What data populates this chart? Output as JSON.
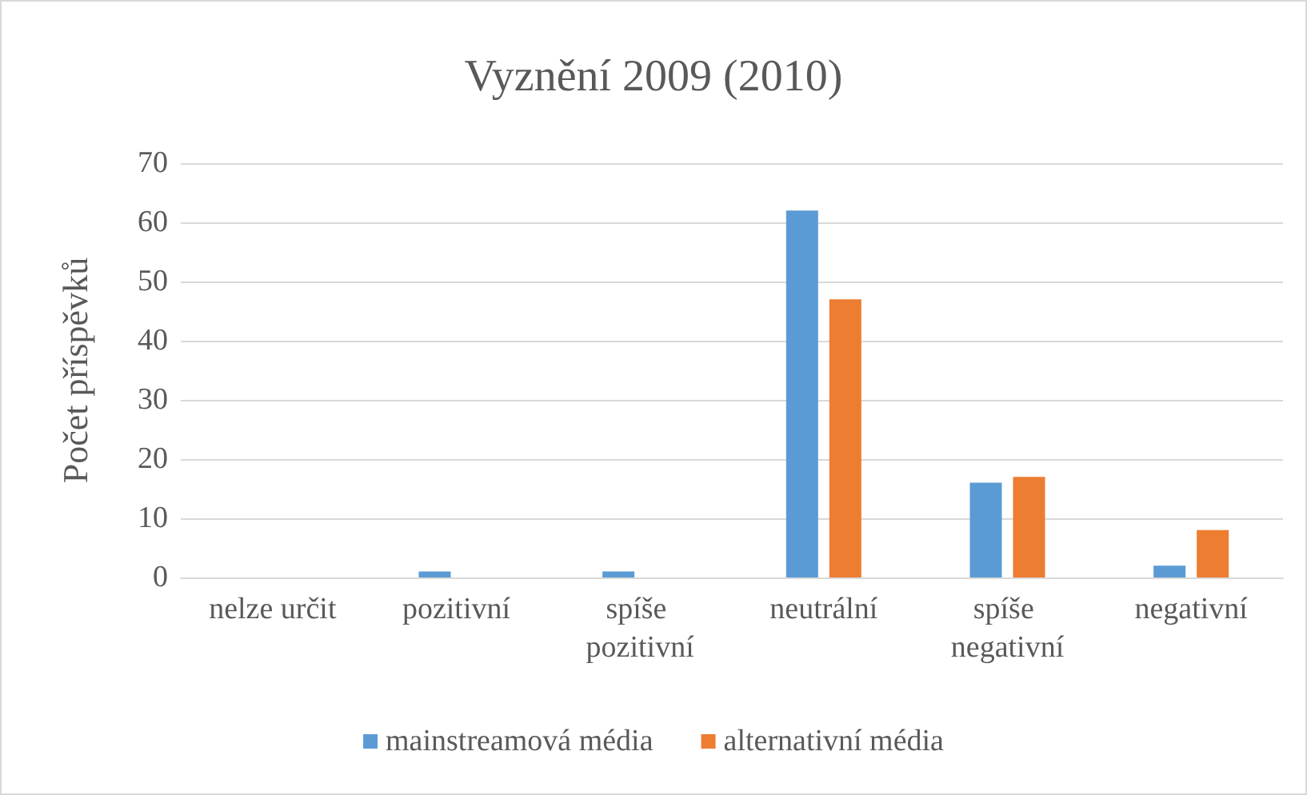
{
  "chart_data": {
    "type": "bar",
    "title": "Vyznění 2009 (2010)",
    "ylabel": "Počet příspěvků",
    "categories": [
      "nelze určit",
      "pozitivní",
      "spíše pozitivní",
      "neutrální",
      "spíše negativní",
      "negativní"
    ],
    "series": [
      {
        "name": "mainstreamová média",
        "color": "#5b9bd5",
        "values": [
          0,
          1,
          1,
          62,
          16,
          2
        ]
      },
      {
        "name": "alternativní média",
        "color": "#ed7d31",
        "values": [
          0,
          0,
          0,
          47,
          17,
          8
        ]
      }
    ],
    "ylim": [
      0,
      70
    ],
    "yticks": [
      0,
      10,
      20,
      30,
      40,
      50,
      60,
      70
    ],
    "grid": "y",
    "legend": "bottom"
  }
}
